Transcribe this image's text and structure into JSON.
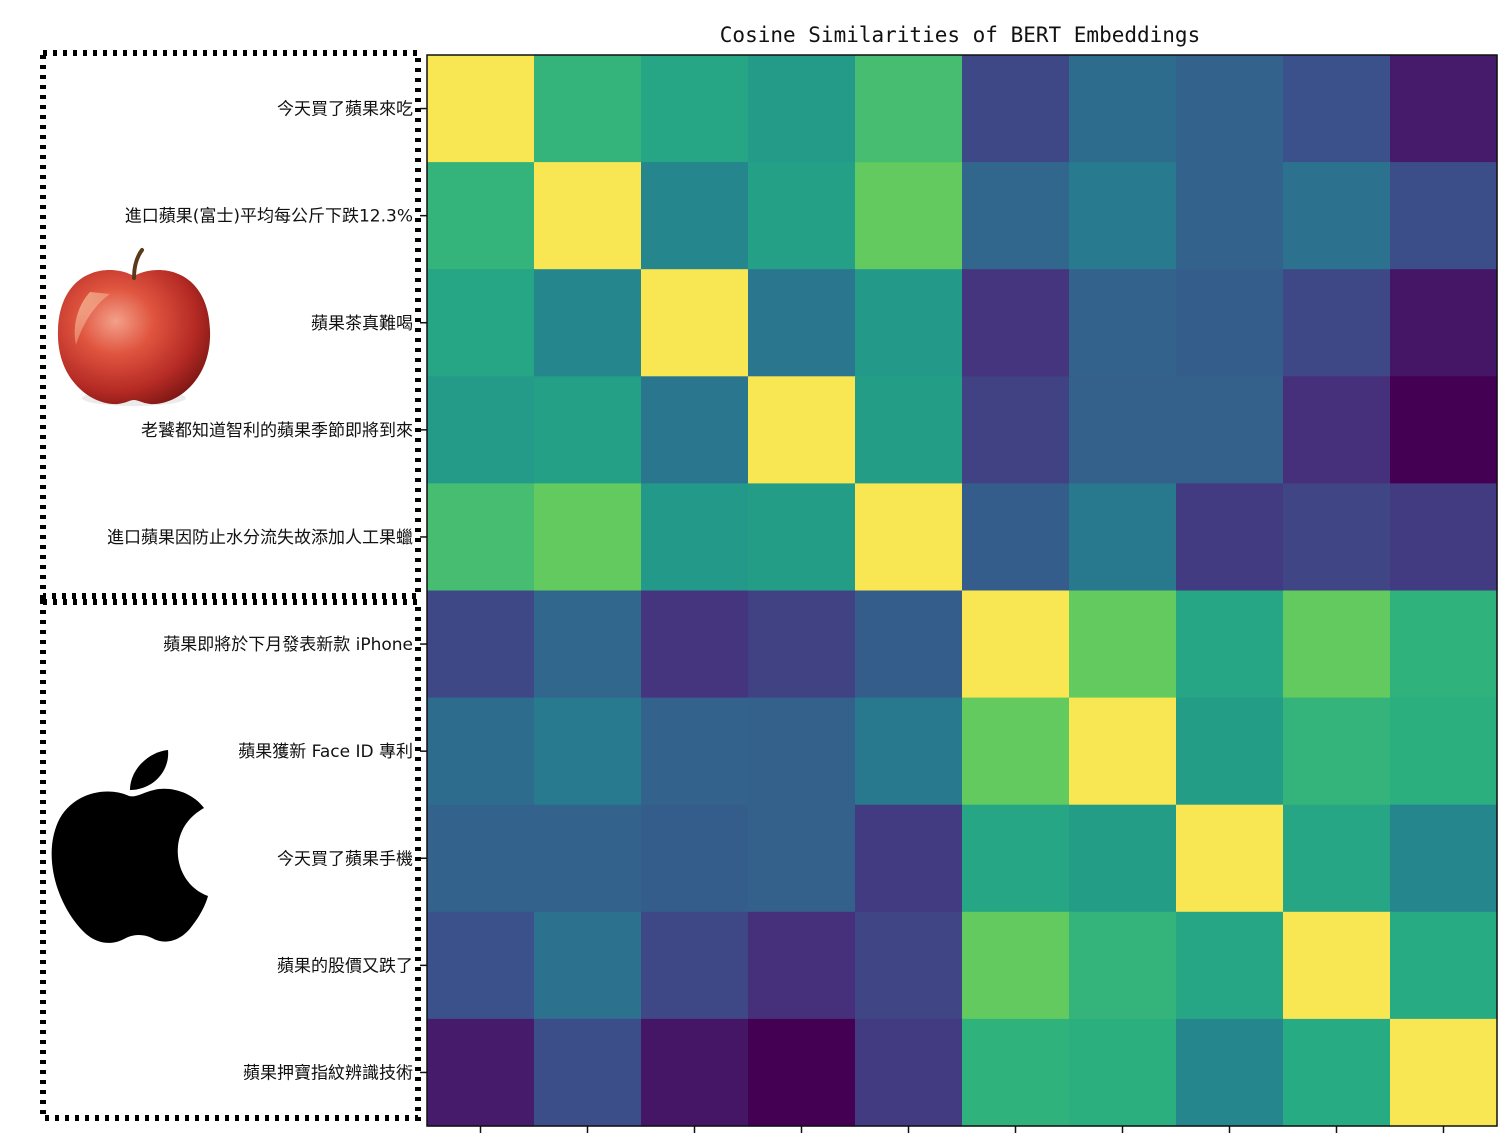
{
  "chart_data": {
    "type": "heatmap",
    "title": "Cosine Similarities of BERT Embeddings",
    "labels": [
      "今天買了蘋果來吃",
      "進口蘋果(富士)平均每公斤下跌12.3%",
      "蘋果茶真難喝",
      "老饕都知道智利的蘋果季節即將到來",
      "進口蘋果因防止水分流失故添加人工果蠟",
      "蘋果即將於下月發表新款 iPhone",
      "蘋果獲新 Face ID 專利",
      "今天買了蘋果手機",
      "蘋果的股價又跌了",
      "蘋果押寶指紋辨識技術"
    ],
    "values": [
      [
        1.0,
        0.66,
        0.6,
        0.55,
        0.7,
        0.22,
        0.36,
        0.32,
        0.25,
        0.08
      ],
      [
        0.66,
        1.0,
        0.46,
        0.57,
        0.76,
        0.34,
        0.42,
        0.32,
        0.38,
        0.24
      ],
      [
        0.6,
        0.46,
        1.0,
        0.4,
        0.54,
        0.16,
        0.32,
        0.3,
        0.22,
        0.06
      ],
      [
        0.55,
        0.57,
        0.4,
        1.0,
        0.56,
        0.2,
        0.31,
        0.31,
        0.14,
        0.0
      ],
      [
        0.7,
        0.76,
        0.54,
        0.56,
        1.0,
        0.3,
        0.41,
        0.18,
        0.21,
        0.18
      ],
      [
        0.22,
        0.34,
        0.16,
        0.2,
        0.3,
        1.0,
        0.76,
        0.6,
        0.76,
        0.65
      ],
      [
        0.36,
        0.42,
        0.32,
        0.31,
        0.41,
        0.76,
        1.0,
        0.56,
        0.66,
        0.64
      ],
      [
        0.32,
        0.32,
        0.3,
        0.31,
        0.18,
        0.6,
        0.56,
        1.0,
        0.6,
        0.46
      ],
      [
        0.25,
        0.38,
        0.22,
        0.14,
        0.21,
        0.76,
        0.66,
        0.6,
        1.0,
        0.62
      ],
      [
        0.08,
        0.24,
        0.06,
        0.0,
        0.18,
        0.65,
        0.64,
        0.46,
        0.62,
        1.0
      ]
    ],
    "colormap": "viridis",
    "vmin": 0,
    "vmax": 1
  },
  "groups": [
    {
      "icon": "red-apple-fruit-icon",
      "rows": [
        0,
        4
      ]
    },
    {
      "icon": "apple-logo-icon",
      "rows": [
        5,
        9
      ]
    }
  ]
}
